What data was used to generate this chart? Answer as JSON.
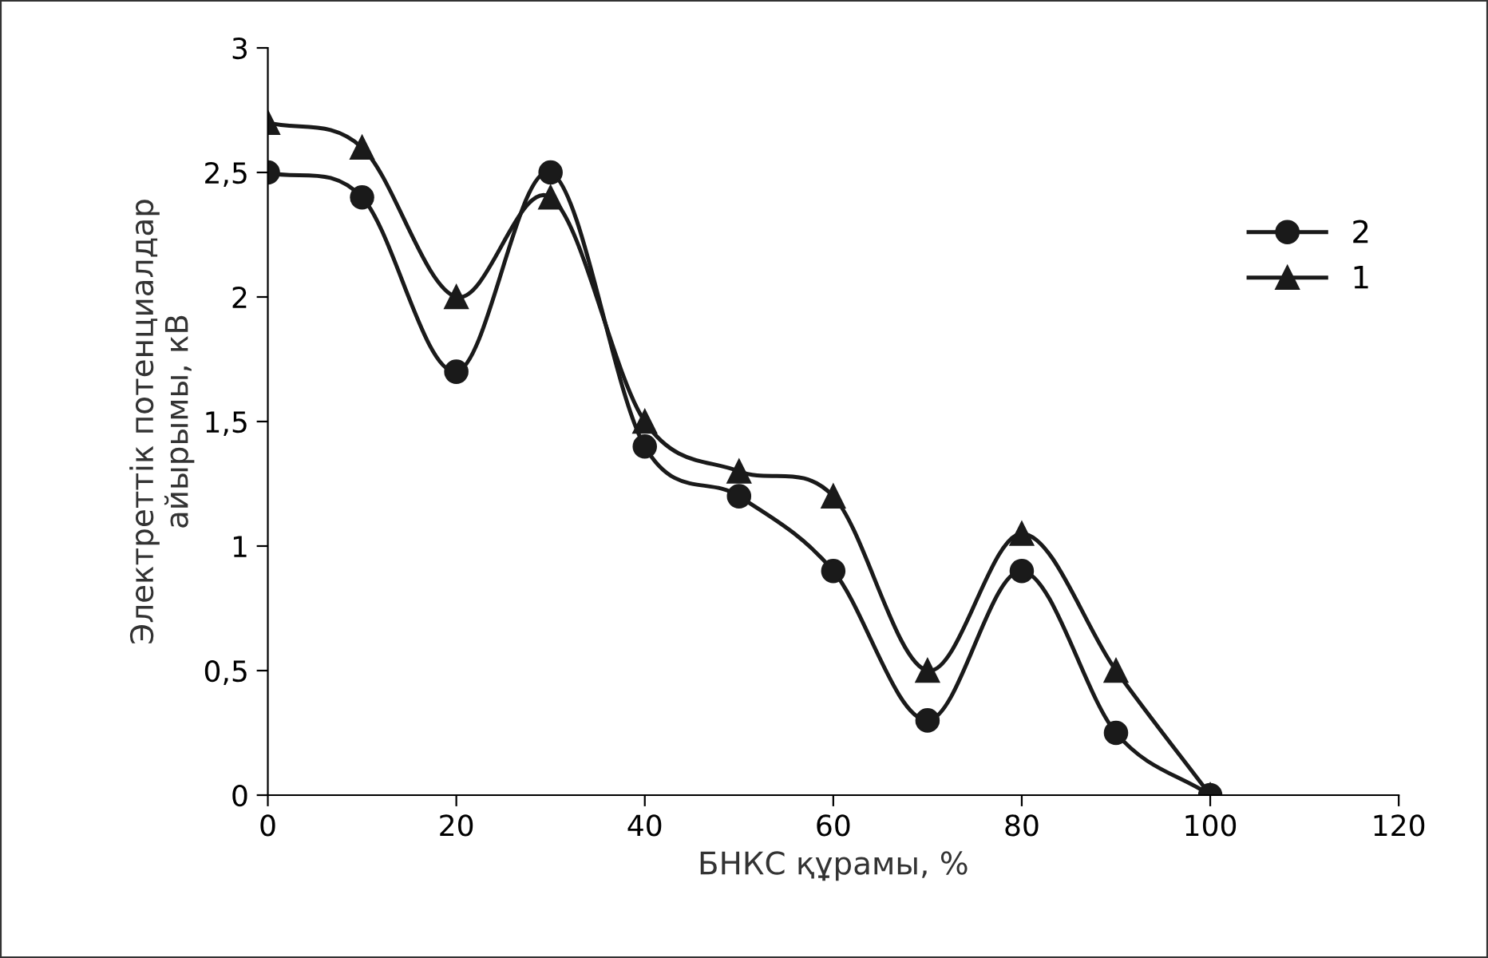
{
  "chart_data": {
    "type": "line",
    "xlabel": "БНКС құрамы, %",
    "ylabel": "Электреттік потенциалдар\nайырымы, кВ",
    "x": [
      0,
      10,
      20,
      30,
      40,
      50,
      60,
      70,
      80,
      90,
      100
    ],
    "series": [
      {
        "name": "2",
        "color": "#1a1a1a",
        "marker": "circle",
        "values": [
          2.5,
          2.4,
          1.7,
          2.5,
          1.4,
          1.2,
          0.9,
          0.3,
          0.9,
          0.25,
          0
        ]
      },
      {
        "name": "1",
        "color": "#1a1a1a",
        "marker": "triangle",
        "values": [
          2.7,
          2.6,
          2.0,
          2.4,
          1.5,
          1.3,
          1.2,
          0.5,
          1.05,
          0.5,
          0
        ]
      }
    ],
    "xlim": [
      0,
      120
    ],
    "xticks": [
      0,
      20,
      40,
      60,
      80,
      100,
      120
    ],
    "ylim": [
      0,
      3
    ],
    "yticks": [
      0,
      {
        "value": 0.5,
        "label": "0,5"
      },
      1,
      {
        "value": 1.5,
        "label": "1,5"
      },
      2,
      {
        "value": 2.5,
        "label": "2,5"
      },
      3
    ],
    "grid": false,
    "legend": "right",
    "line_style": "solid"
  }
}
